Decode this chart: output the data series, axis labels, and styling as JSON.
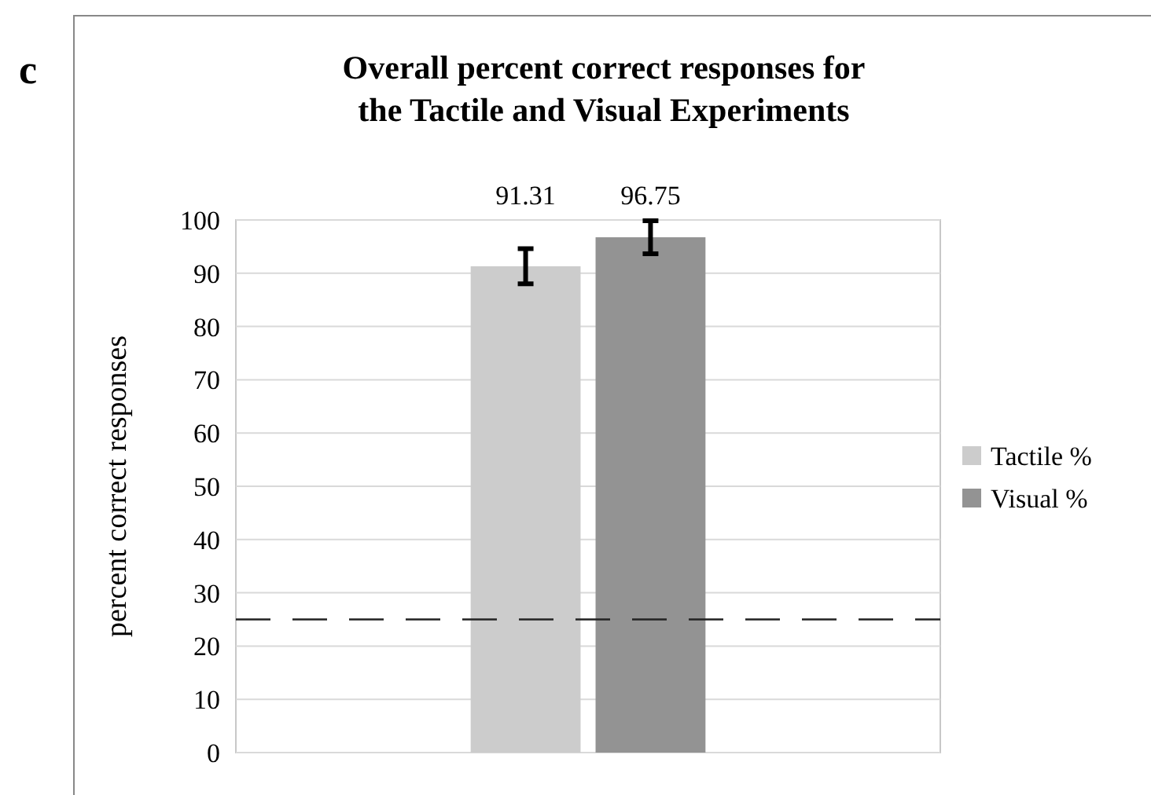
{
  "chart_data": {
    "type": "bar",
    "title": "Overall percent correct responses for\nthe Tactile and Visual Experiments",
    "ylabel": "percent correct responses",
    "annotations": [
      "c"
    ],
    "categories": [
      null
    ],
    "series": [
      {
        "name": "Tactile %",
        "color": "#cccccc",
        "values": [
          91.31
        ],
        "errors": [
          3.3
        ]
      },
      {
        "name": "Visual %",
        "color": "#939393",
        "values": [
          96.75
        ],
        "errors": [
          3.1
        ]
      }
    ],
    "ylim": [
      0,
      100
    ],
    "yticks": [
      0,
      10,
      20,
      30,
      40,
      50,
      60,
      70,
      80,
      90,
      100
    ],
    "grid": "y",
    "legend": "right",
    "data_labels": true,
    "ref_lines": [
      {
        "axis": "y",
        "value": 25,
        "color": "#222222",
        "line_style": "dashed"
      }
    ]
  }
}
